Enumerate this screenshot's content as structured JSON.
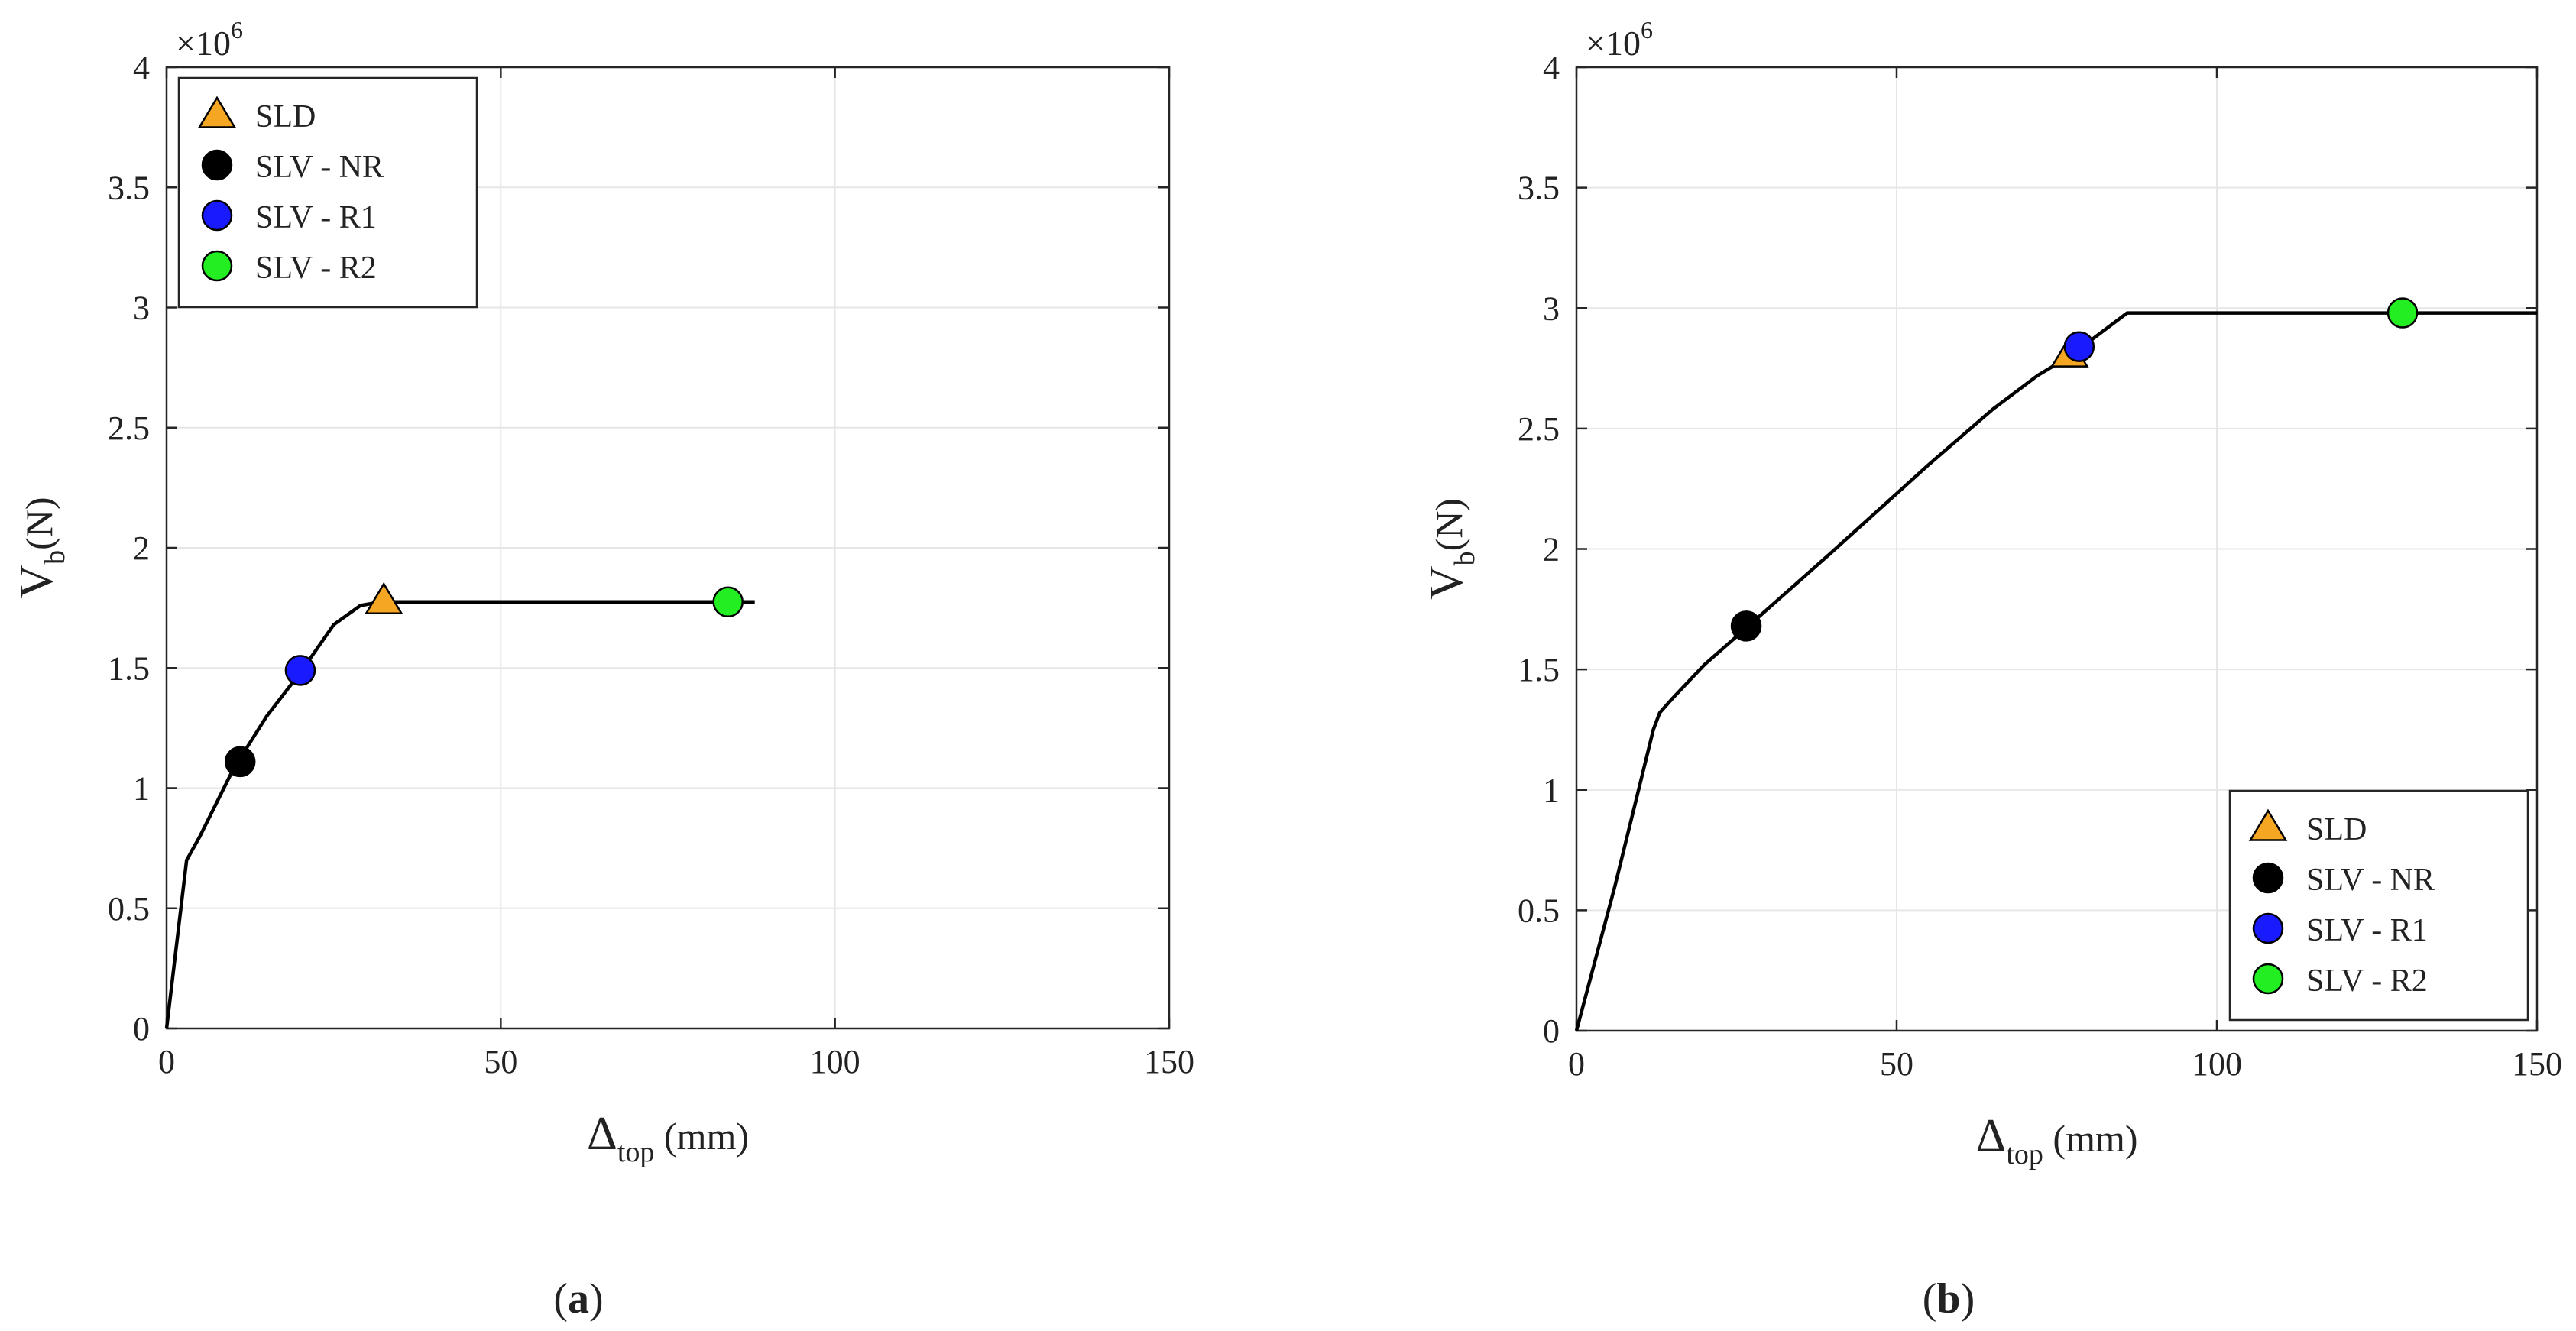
{
  "figure": {
    "panel_labels": [
      "(a)",
      "(b)"
    ],
    "panel_label_parts": [
      {
        "open": "(",
        "letter": "a",
        "close": ")"
      },
      {
        "open": "(",
        "letter": "b",
        "close": ")"
      }
    ]
  },
  "styles": {
    "curve_color": "#000000",
    "grid_color": "#e6e6e6",
    "axis_color": "#262626",
    "marker_colors": {
      "SLD": "#f5a623",
      "SLV - NR": "#000000",
      "SLV - R1": "#1a1aff",
      "SLV - R2": "#22ee22"
    }
  },
  "chart_data": [
    {
      "type": "line",
      "panel": "(a)",
      "xlabel": {
        "symbol": "Δ",
        "sub": "top",
        "unit": " (mm)"
      },
      "ylabel": {
        "symbol": "V",
        "sub": "b",
        "unit": "(N)"
      },
      "xlim": [
        0,
        150
      ],
      "ylim": [
        0,
        4
      ],
      "y_multiplier": {
        "base": "×10",
        "exp": "6"
      },
      "xticks": [
        0,
        50,
        100,
        150
      ],
      "yticks": [
        0,
        0.5,
        1,
        1.5,
        2,
        2.5,
        3,
        3.5,
        4
      ],
      "ytick_labels": [
        "0",
        "0.5",
        "1",
        "1.5",
        "2",
        "2.5",
        "3",
        "3.5",
        "4"
      ],
      "xtick_labels": [
        "0",
        "50",
        "100",
        "150"
      ],
      "grid": true,
      "legend_position": "top-left",
      "curve": {
        "x": [
          0,
          3,
          5,
          10,
          15,
          20,
          25,
          29,
          32,
          40,
          60,
          88
        ],
        "y": [
          0,
          0.7,
          0.8,
          1.08,
          1.3,
          1.48,
          1.68,
          1.76,
          1.775,
          1.775,
          1.775,
          1.775
        ]
      },
      "points": [
        {
          "label": "SLD",
          "marker": "triangle",
          "x": 32.5,
          "y": 1.78
        },
        {
          "label": "SLV - NR",
          "marker": "circle",
          "x": 11,
          "y": 1.11
        },
        {
          "label": "SLV - R1",
          "marker": "circle",
          "x": 20,
          "y": 1.49
        },
        {
          "label": "SLV - R2",
          "marker": "circle",
          "x": 84,
          "y": 1.775
        }
      ],
      "legend": [
        "SLD",
        "SLV - NR",
        "SLV - R1",
        "SLV - R2"
      ]
    },
    {
      "type": "line",
      "panel": "(b)",
      "xlabel": {
        "symbol": "Δ",
        "sub": "top",
        "unit": " (mm)"
      },
      "ylabel": {
        "symbol": "V",
        "sub": "b",
        "unit": "(N)"
      },
      "xlim": [
        0,
        150
      ],
      "ylim": [
        0,
        4
      ],
      "y_multiplier": {
        "base": "×10",
        "exp": "6"
      },
      "xticks": [
        0,
        50,
        100,
        150
      ],
      "yticks": [
        0,
        0.5,
        1,
        1.5,
        2,
        2.5,
        3,
        3.5,
        4
      ],
      "ytick_labels": [
        "0",
        "0.5",
        "1",
        "1.5",
        "2",
        "2.5",
        "3",
        "3.5",
        "4"
      ],
      "xtick_labels": [
        "0",
        "50",
        "100",
        "150"
      ],
      "grid": true,
      "legend_position": "bottom-right",
      "curve": {
        "x": [
          0,
          6,
          12,
          13,
          15,
          20,
          26,
          40,
          55,
          65,
          72,
          77,
          80,
          86,
          100,
          150
        ],
        "y": [
          0,
          0.6,
          1.25,
          1.32,
          1.38,
          1.52,
          1.66,
          1.99,
          2.35,
          2.58,
          2.72,
          2.8,
          2.86,
          2.98,
          2.98,
          2.98
        ]
      },
      "points": [
        {
          "label": "SLD",
          "marker": "triangle",
          "x": 77,
          "y": 2.81
        },
        {
          "label": "SLV - NR",
          "marker": "circle",
          "x": 26.5,
          "y": 1.68
        },
        {
          "label": "SLV - R1",
          "marker": "circle",
          "x": 78.5,
          "y": 2.84
        },
        {
          "label": "SLV - R2",
          "marker": "circle",
          "x": 129,
          "y": 2.98
        }
      ],
      "legend": [
        "SLD",
        "SLV - NR",
        "SLV - R1",
        "SLV - R2"
      ]
    }
  ]
}
